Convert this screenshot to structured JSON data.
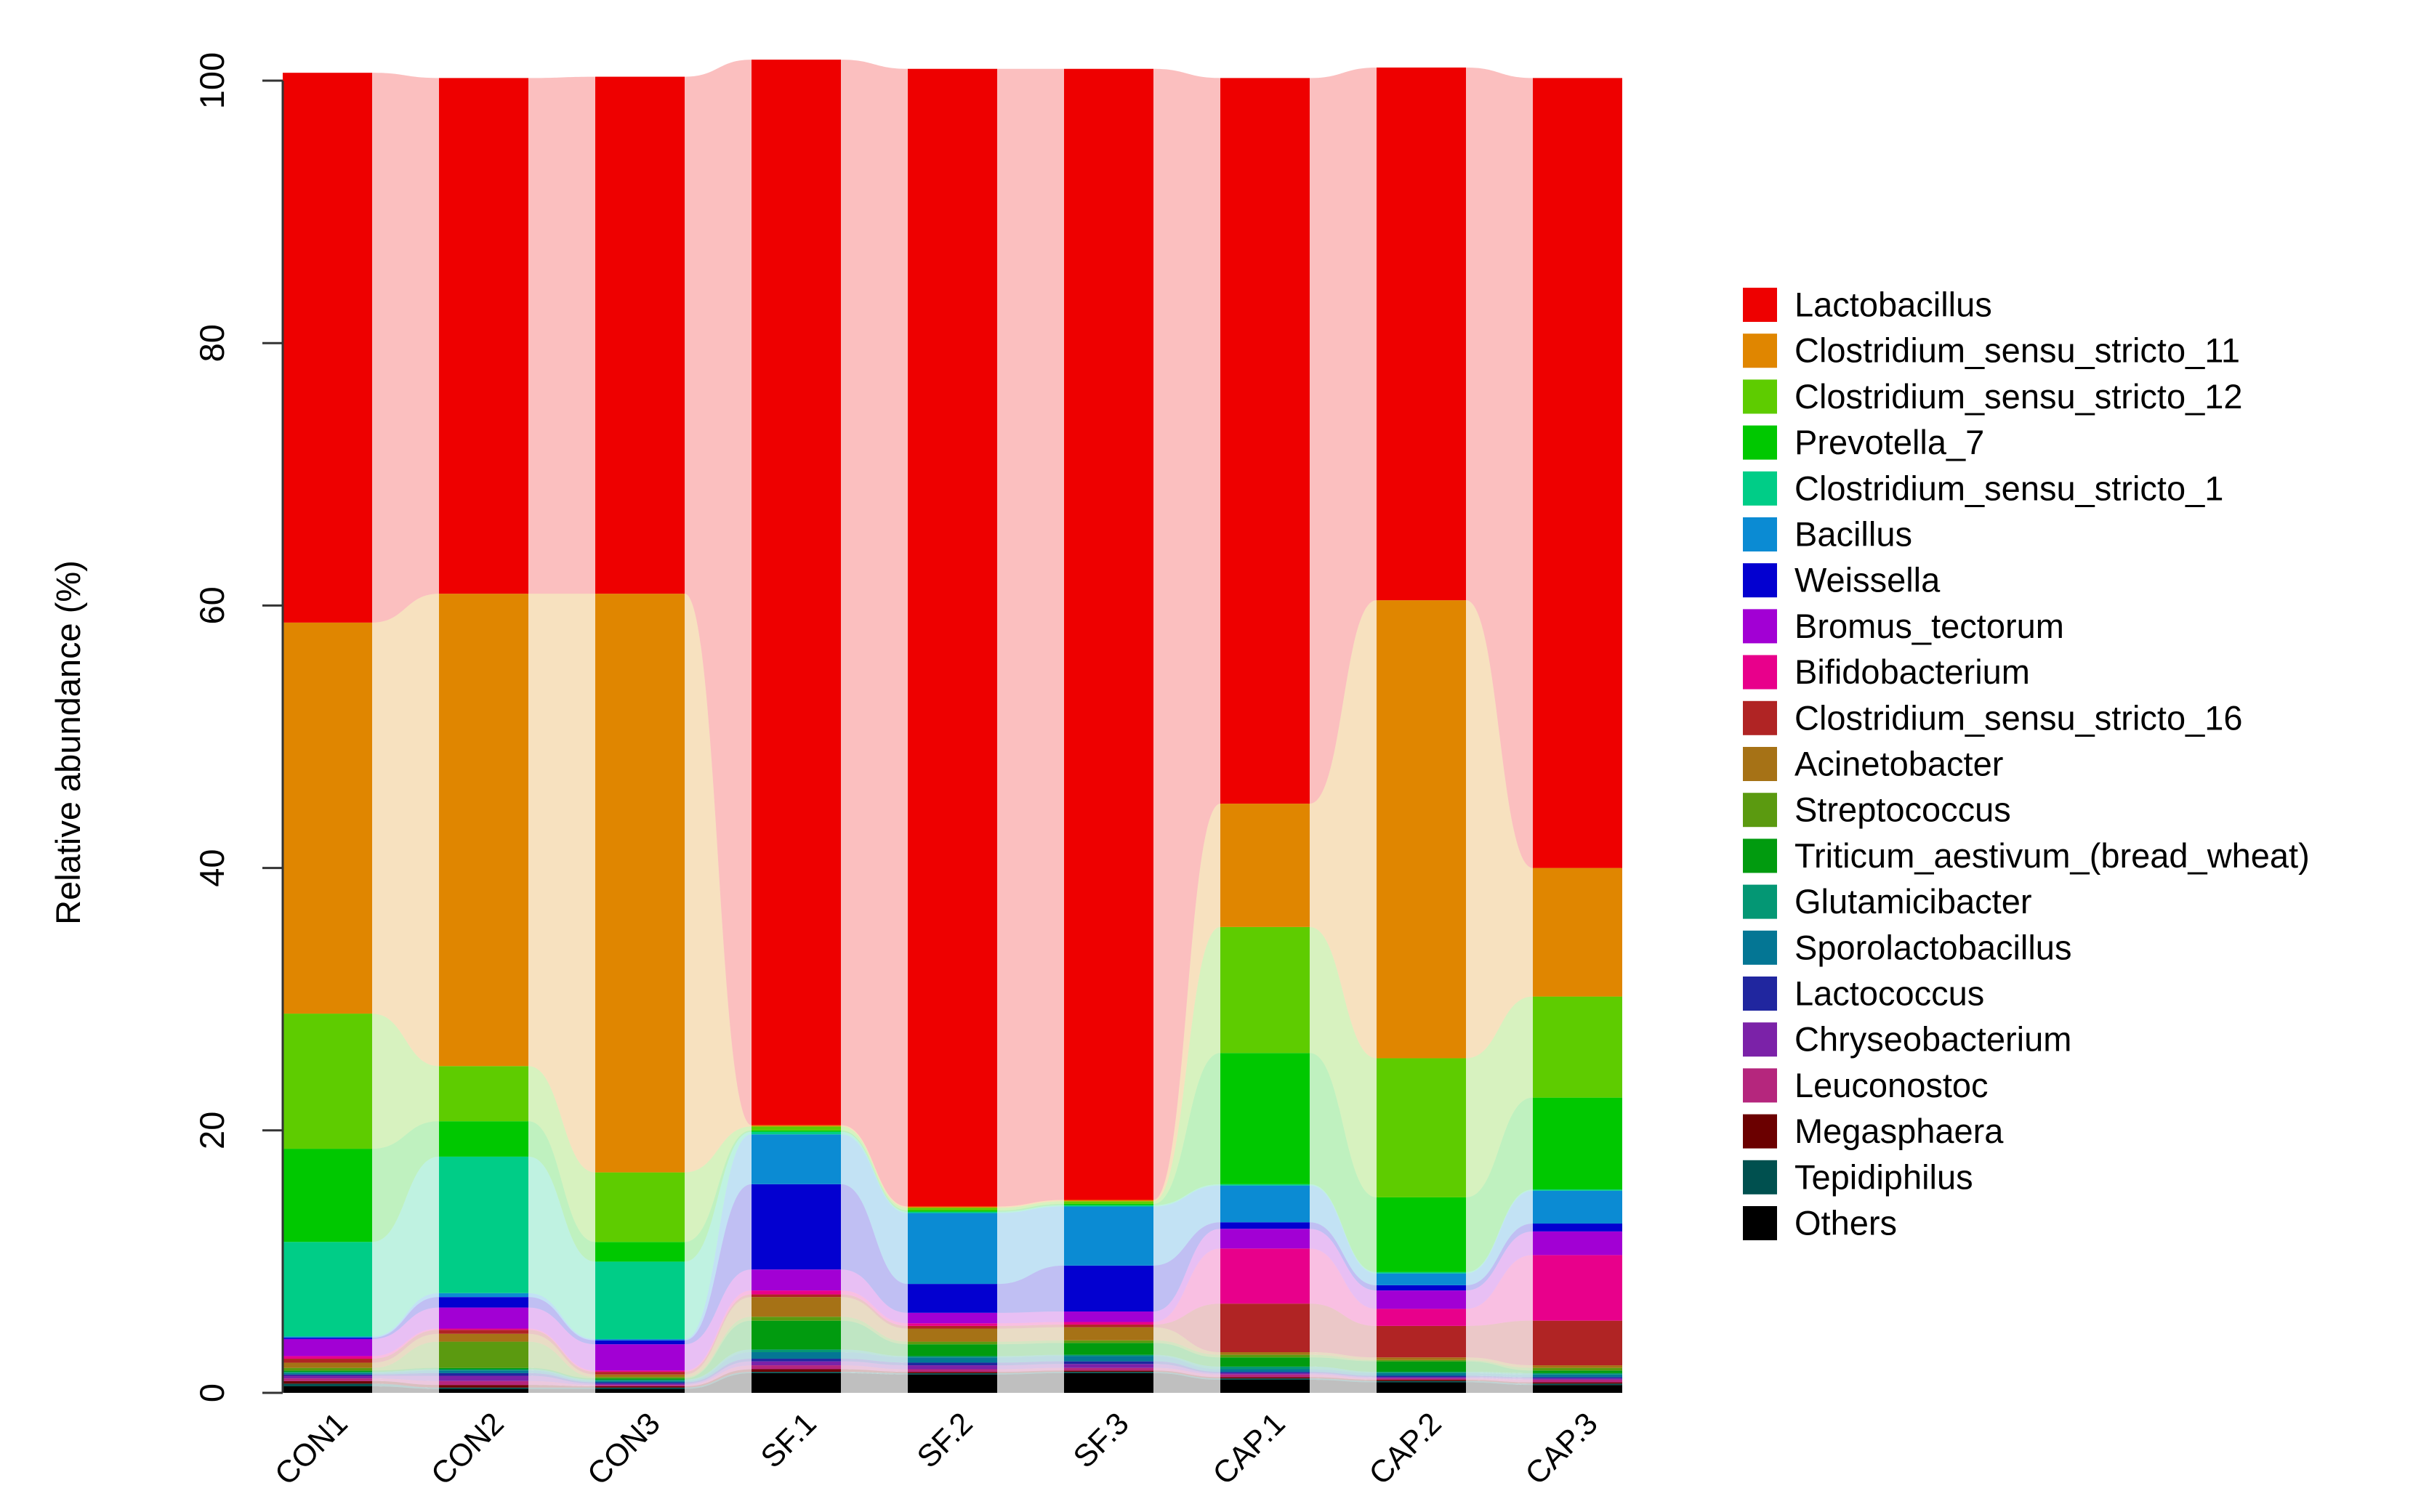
{
  "chart_data": {
    "type": "bar",
    "stacked": true,
    "flow_bands": true,
    "title": "",
    "xlabel": "",
    "ylabel": "Relative abundance (%)",
    "ylim": [
      0,
      100
    ],
    "yticks": [
      0,
      20,
      40,
      60,
      80,
      100
    ],
    "grid": false,
    "legend_position": "right",
    "categories": [
      "CON1",
      "CON2",
      "CON3",
      "SF.1",
      "SF.2",
      "SF.3",
      "CAP.1",
      "CAP.2",
      "CAP.3"
    ],
    "series": [
      {
        "name": "Others",
        "color": "#000000",
        "values": [
          0.5,
          0.3,
          0.3,
          1.5,
          1.4,
          1.5,
          1.0,
          0.8,
          0.6
        ]
      },
      {
        "name": "Tepidiphilus",
        "color": "#00504F",
        "values": [
          0.2,
          0.1,
          0.1,
          0.1,
          0.1,
          0.1,
          0.1,
          0.1,
          0.1
        ]
      },
      {
        "name": "Megasphaera",
        "color": "#6B0000",
        "values": [
          0.2,
          0.2,
          0.1,
          0.2,
          0.1,
          0.1,
          0.1,
          0.1,
          0.1
        ]
      },
      {
        "name": "Leuconostoc",
        "color": "#B5267D",
        "values": [
          0.2,
          0.3,
          0.1,
          0.3,
          0.2,
          0.2,
          0.2,
          0.1,
          0.2
        ]
      },
      {
        "name": "Chryseobacterium",
        "color": "#7B22A8",
        "values": [
          0.2,
          0.4,
          0.1,
          0.3,
          0.3,
          0.3,
          0.1,
          0.1,
          0.1
        ]
      },
      {
        "name": "Lactococcus",
        "color": "#20269F",
        "values": [
          0.1,
          0.2,
          0.1,
          0.2,
          0.2,
          0.2,
          0.1,
          0.1,
          0.1
        ]
      },
      {
        "name": "Sporolactobacillus",
        "color": "#047694",
        "values": [
          0.1,
          0.2,
          0.1,
          0.5,
          0.4,
          0.4,
          0.2,
          0.2,
          0.2
        ]
      },
      {
        "name": "Glutamicibacter",
        "color": "#049774",
        "values": [
          0.1,
          0.1,
          0.1,
          0.2,
          0.1,
          0.1,
          0.2,
          0.1,
          0.1
        ]
      },
      {
        "name": "Triticum_aestivum_(bread_wheat)",
        "color": "#019B0F",
        "values": [
          0.1,
          0.1,
          0.1,
          2.2,
          0.9,
          0.9,
          0.7,
          0.8,
          0.2
        ]
      },
      {
        "name": "Streptococcus",
        "color": "#5B9A10",
        "values": [
          0.2,
          2.0,
          0.1,
          0.3,
          0.2,
          0.2,
          0.2,
          0.1,
          0.2
        ]
      },
      {
        "name": "Acinetobacter",
        "color": "#A67216",
        "values": [
          0.4,
          0.6,
          0.2,
          1.5,
          1.0,
          1.0,
          0.2,
          0.2,
          0.2
        ]
      },
      {
        "name": "Clostridium_sensu_stricto_16",
        "color": "#B02424",
        "values": [
          0.3,
          0.3,
          0.2,
          0.2,
          0.2,
          0.2,
          3.7,
          2.4,
          3.4
        ]
      },
      {
        "name": "Bifidobacterium",
        "color": "#E8008B",
        "values": [
          0.2,
          0.1,
          0.1,
          0.3,
          0.2,
          0.2,
          4.2,
          1.3,
          5.0
        ]
      },
      {
        "name": "Bromus_tectorum",
        "color": "#A200D4",
        "values": [
          1.3,
          1.6,
          2.0,
          1.6,
          0.8,
          0.8,
          1.5,
          1.4,
          1.8
        ]
      },
      {
        "name": "Weissella",
        "color": "#0300D0",
        "values": [
          0.1,
          0.8,
          0.3,
          6.5,
          2.2,
          3.5,
          0.5,
          0.4,
          0.6
        ]
      },
      {
        "name": "Bacillus",
        "color": "#0B8BD3",
        "values": [
          0.1,
          0.3,
          0.1,
          3.8,
          5.4,
          4.5,
          2.8,
          0.9,
          2.5
        ]
      },
      {
        "name": "Clostridium_sensu_stricto_1",
        "color": "#00CD87",
        "values": [
          7.2,
          10.4,
          5.9,
          0.2,
          0.1,
          0.1,
          0.1,
          0.1,
          0.1
        ]
      },
      {
        "name": "Prevotella_7",
        "color": "#00C800",
        "values": [
          7.1,
          2.7,
          1.5,
          0.1,
          0.1,
          0.1,
          10.0,
          5.7,
          7.0
        ]
      },
      {
        "name": "Clostridium_sensu_stricto_12",
        "color": "#5ECC00",
        "values": [
          10.3,
          4.2,
          5.3,
          0.3,
          0.2,
          0.2,
          9.6,
          10.6,
          7.7
        ]
      },
      {
        "name": "Clostridium_sensu_stricto_11",
        "color": "#E08600",
        "values": [
          29.8,
          36.0,
          44.1,
          0.1,
          0.1,
          0.1,
          9.4,
          34.9,
          9.8
        ]
      },
      {
        "name": "Lactobacillus",
        "color": "#EE0000",
        "values": [
          41.9,
          39.3,
          39.4,
          81.2,
          86.7,
          86.2,
          55.3,
          40.6,
          60.2
        ]
      }
    ]
  }
}
